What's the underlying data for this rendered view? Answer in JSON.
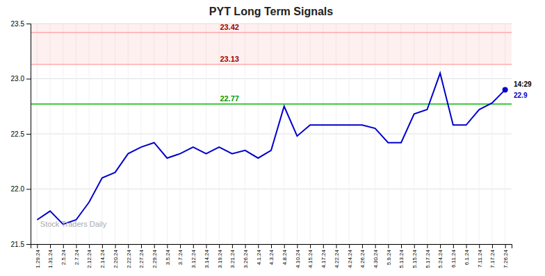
{
  "chart_data": {
    "type": "line",
    "title": "PYT Long Term Signals",
    "categories": [
      "1.29.24",
      "1.31.24",
      "2.5.24",
      "2.7.24",
      "2.12.24",
      "2.14.24",
      "2.20.24",
      "2.22.24",
      "2.27.24",
      "2.29.24",
      "3.5.24",
      "3.7.24",
      "3.12.24",
      "3.14.24",
      "3.19.24",
      "3.21.24",
      "3.26.24",
      "4.1.24",
      "4.3.24",
      "4.8.24",
      "4.10.24",
      "4.15.24",
      "4.17.24",
      "4.22.24",
      "4.24.24",
      "4.26.24",
      "4.30.24",
      "5.9.24",
      "5.13.24",
      "5.15.24",
      "5.17.24",
      "5.24.24",
      "6.11.24",
      "6.1.24",
      "7.11.24",
      "7.17.24",
      "7.26.24"
    ],
    "values": [
      21.72,
      21.8,
      21.68,
      21.72,
      21.88,
      22.1,
      22.15,
      22.32,
      22.38,
      22.42,
      22.28,
      22.32,
      22.38,
      22.32,
      22.38,
      22.32,
      22.35,
      22.28,
      22.35,
      22.75,
      22.48,
      22.58,
      22.58,
      22.58,
      22.58,
      22.58,
      22.55,
      22.42,
      22.42,
      22.68,
      22.72,
      23.05,
      22.58,
      22.58,
      22.72,
      22.78,
      22.9
    ],
    "color": "#0000cc",
    "ylim": [
      21.5,
      23.5
    ],
    "yticks": [
      {
        "value": 21.5,
        "label": "21.5"
      },
      {
        "value": 22.0,
        "label": "22.0"
      },
      {
        "value": 22.5,
        "label": "22.5"
      },
      {
        "value": 23.0,
        "label": "23.0"
      },
      {
        "value": 23.5,
        "label": "23.5"
      }
    ],
    "grid": true,
    "reference_lines": [
      {
        "value": 22.77,
        "label": "22.77",
        "color": "#00bb00"
      },
      {
        "value": 23.13,
        "label": "23.13",
        "color": "#ffaaaa"
      },
      {
        "value": 23.42,
        "label": "23.42",
        "color": "#ffaaaa"
      }
    ],
    "bands": [
      {
        "from": 23.13,
        "to": 23.42,
        "color": "#ffaaaa"
      },
      {
        "from": 23.42,
        "to": 23.5,
        "color": "#ffaaaa"
      }
    ],
    "last_point_label": {
      "time": "14:29",
      "value": 22.9
    },
    "watermark": "Stock Traders Daily"
  }
}
